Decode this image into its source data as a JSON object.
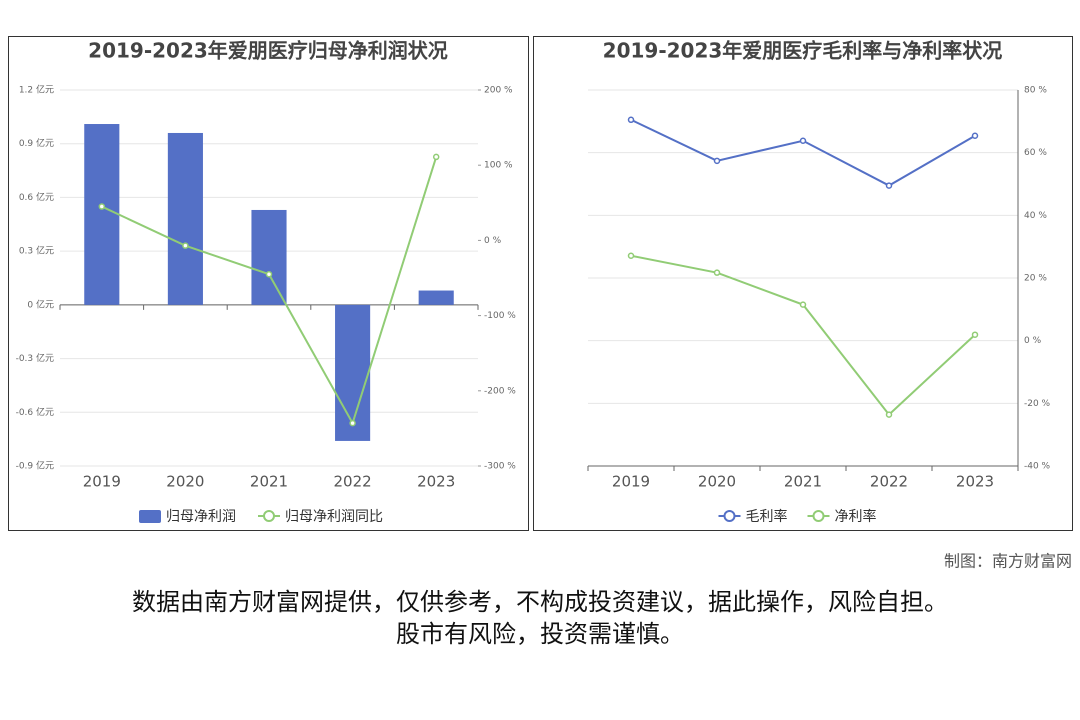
{
  "chart_data": [
    {
      "type": "bar",
      "title": "2019-2023年爱朋医疗归母净利润状况",
      "categories": [
        "2019",
        "2020",
        "2021",
        "2022",
        "2023"
      ],
      "series": [
        {
          "name": "归母净利润",
          "color": "#5470c6",
          "type": "bar",
          "values": [
            1.01,
            0.96,
            0.53,
            -0.76,
            0.08
          ]
        },
        {
          "name": "归母净利润同比",
          "color": "#91cc75",
          "type": "line",
          "axis": "y2",
          "values": [
            45,
            -7,
            -45,
            -243,
            111
          ]
        }
      ],
      "ylim": [
        -0.9,
        1.2
      ],
      "yticks": [
        {
          "value": -0.9,
          "label": "-0.9 亿元"
        },
        {
          "value": -0.6,
          "label": "-0.6 亿元"
        },
        {
          "value": -0.3,
          "label": "-0.3 亿元"
        },
        {
          "value": 0,
          "label": "0 亿元"
        },
        {
          "value": 0.3,
          "label": "0.3 亿元"
        },
        {
          "value": 0.6,
          "label": "0.6 亿元"
        },
        {
          "value": 0.9,
          "label": "0.9 亿元"
        },
        {
          "value": 1.2,
          "label": "1.2 亿元"
        }
      ],
      "y2lim": [
        -300,
        200
      ],
      "y2ticks": [
        {
          "value": -300,
          "label": "-300 %"
        },
        {
          "value": -200,
          "label": "-200 %"
        },
        {
          "value": -100,
          "label": "-100 %"
        },
        {
          "value": 0,
          "label": "0 %"
        },
        {
          "value": 100,
          "label": "100 %"
        },
        {
          "value": 200,
          "label": "200 %"
        }
      ],
      "grid": true
    },
    {
      "type": "line",
      "title": "2019-2023年爱朋医疗毛利率与净利率状况",
      "categories": [
        "2019",
        "2020",
        "2021",
        "2022",
        "2023"
      ],
      "series": [
        {
          "name": "毛利率",
          "color": "#5470c6",
          "values": [
            70.5,
            57.4,
            63.8,
            49.5,
            65.4
          ]
        },
        {
          "name": "净利率",
          "color": "#91cc75",
          "values": [
            27.1,
            21.7,
            11.5,
            -23.6,
            1.9
          ]
        }
      ],
      "ylim": [
        -40,
        80
      ],
      "yticks": [
        {
          "value": -40,
          "label": "-40 %"
        },
        {
          "value": -20,
          "label": "-20 %"
        },
        {
          "value": 0,
          "label": "0 %"
        },
        {
          "value": 20,
          "label": "20 %"
        },
        {
          "value": 40,
          "label": "40 %"
        },
        {
          "value": 60,
          "label": "60 %"
        },
        {
          "value": 80,
          "label": "80 %"
        }
      ],
      "y_axis_side": "right",
      "grid": true
    }
  ],
  "credit": "制图：南方财富网",
  "disclaimer": [
    "数据由南方财富网提供，仅供参考，不构成投资建议，据此操作，风险自担。",
    "股市有风险，投资需谨慎。"
  ]
}
